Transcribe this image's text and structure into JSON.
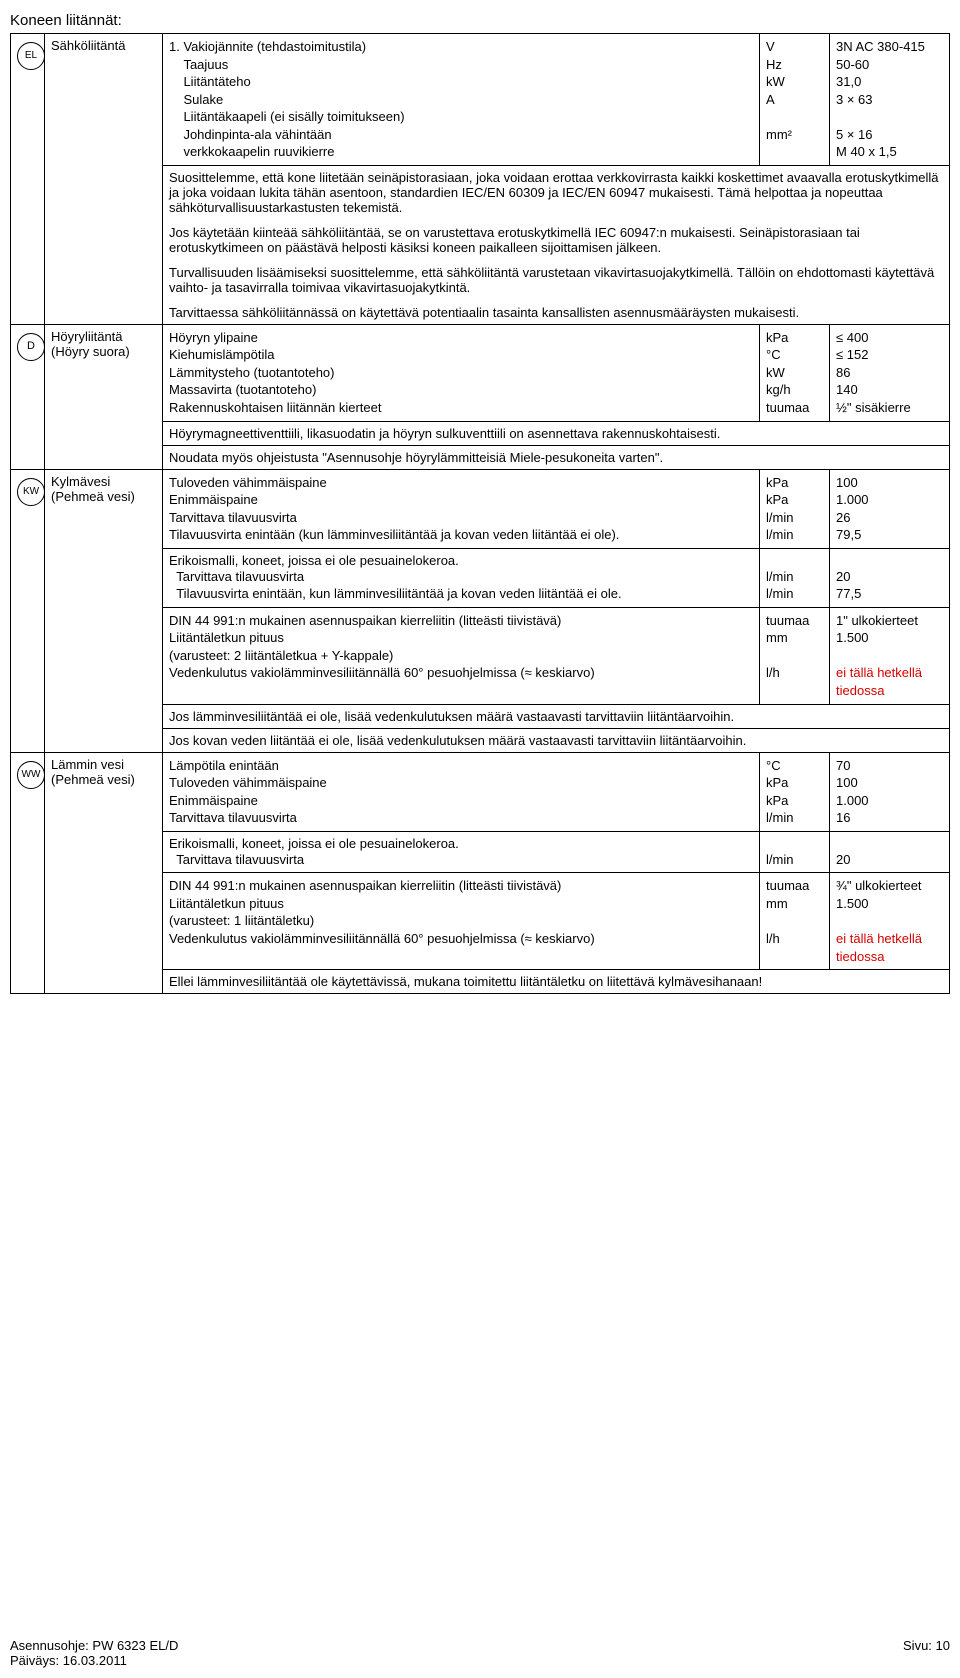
{
  "page_title": "Koneen liitännät:",
  "footer": {
    "left_line1": "Asennusohje: PW 6323 EL/D",
    "left_line2": "Päiväys: 16.03.2011",
    "right": "Sivu: 10"
  },
  "sections": [
    {
      "icon": "EL",
      "label_lines": [
        "Sähköliitäntä"
      ],
      "rows": [
        {
          "text": "1. Vakiojännite (tehdastoimitustila)",
          "unit": "V",
          "value": "3N AC 380-415"
        },
        {
          "text": "    Taajuus",
          "unit": "Hz",
          "value": "50-60"
        },
        {
          "text": "    Liitäntäteho",
          "unit": "kW",
          "value": "31,0"
        },
        {
          "text": "    Sulake",
          "unit": "A",
          "value": "3 × 63"
        },
        {
          "text": "    Liitäntäkaapeli (ei sisälly toimitukseen)",
          "unit": "",
          "value": ""
        },
        {
          "text": "    Johdinpinta-ala vähintään",
          "unit": "mm²",
          "value": "5 × 16"
        },
        {
          "text": "    verkkokaapelin ruuvikierre",
          "unit": "",
          "value": "M 40 x 1,5"
        }
      ],
      "paragraphs": [
        "Suosittelemme, että kone liitetään seinäpistorasiaan, joka voidaan erottaa verkkovirrasta kaikki koskettimet avaavalla erotuskytkimellä ja joka voidaan lukita tähän asentoon, standardien IEC/EN 60309 ja IEC/EN 60947 mukaisesti. Tämä helpottaa ja nopeuttaa sähköturvallisuustarkastusten tekemistä.",
        "Jos käytetään kiinteää sähköliitäntää, se on varustettava erotuskytkimellä IEC 60947:n mukaisesti. Seinäpistorasiaan tai erotuskytkimeen on päästävä helposti käsiksi koneen paikalleen sijoittamisen jälkeen.",
        "Turvallisuuden lisäämiseksi suosittelemme, että sähköliitäntä varustetaan vikavirtasuojakytkimellä. Tällöin on ehdottomasti käytettävä vaihto- ja tasavirralla toimivaa vikavirtasuojakytkintä.",
        "Tarvittaessa sähköliitännässä on käytettävä potentiaalin tasainta kansallisten asennusmääräysten mukaisesti."
      ]
    },
    {
      "icon": "D",
      "label_lines": [
        "Höyryliitäntä",
        "(Höyry suora)"
      ],
      "rows": [
        {
          "text": "Höyryn ylipaine",
          "unit": "kPa",
          "value": "≤ 400"
        },
        {
          "text": "Kiehumislämpötila",
          "unit": "°C",
          "value": "≤ 152"
        },
        {
          "text": "Lämmitysteho (tuotantoteho)",
          "unit": "kW",
          "value": "86"
        },
        {
          "text": "Massavirta (tuotantoteho)",
          "unit": "kg/h",
          "value": "140"
        },
        {
          "text": "Rakennuskohtaisen liitännän kierteet",
          "unit": "tuumaa",
          "value": "½\" sisäkierre"
        }
      ],
      "paragraphs": [
        "Höyrymagneettiventtiili, likasuodatin ja höyryn sulkuventtiili on asennettava rakennuskohtaisesti."
      ],
      "boxed_paragraphs": [
        "Noudata myös ohjeistusta \"Asennusohje höyrylämmitteisiä Miele-pesukoneita varten\"."
      ]
    },
    {
      "icon": "KW",
      "label_lines": [
        "Kylmävesi",
        "(Pehmeä vesi)"
      ],
      "rows": [
        {
          "text": "Tuloveden vähimmäispaine",
          "unit": "kPa",
          "value": "100"
        },
        {
          "text": "Enimmäispaine",
          "unit": "kPa",
          "value": "1.000"
        },
        {
          "text": "Tarvittava tilavuusvirta",
          "unit": "l/min",
          "value": "26"
        },
        {
          "text": "Tilavuusvirta enintään (kun lämminvesiliitäntää ja kovan veden liitäntää ei ole).",
          "unit": "l/min",
          "value": "79,5"
        }
      ],
      "groups": [
        {
          "heading": "Erikoismalli, koneet, joissa ei ole pesuainelokeroa.",
          "rows": [
            {
              "text": "  Tarvittava tilavuusvirta",
              "unit": "l/min",
              "value": "20"
            },
            {
              "text": "  Tilavuusvirta enintään, kun lämminvesiliitäntää ja kovan veden liitäntää ei ole.",
              "unit": "l/min",
              "value": "77,5"
            }
          ]
        },
        {
          "rows": [
            {
              "text": "DIN 44 991:n mukainen asennuspaikan kierreliitin (litteästi tiivistävä)",
              "unit": "tuumaa",
              "value": "1\" ulkokierteet"
            },
            {
              "text": "Liitäntäletkun pituus",
              "unit": "mm",
              "value": "1.500"
            },
            {
              "text": "(varusteet: 2 liitäntäletkua + Y-kappale)",
              "unit": "",
              "value": ""
            },
            {
              "text": "Vedenkulutus vakiolämminvesiliitännällä 60° pesuohjelmissa (≈ keskiarvo)",
              "unit": "l/h",
              "value": "ei tällä hetkellä tiedossa",
              "value_red": true
            }
          ]
        }
      ],
      "boxed_paragraphs": [
        "Jos lämminvesiliitäntää ei ole, lisää vedenkulutuksen määrä vastaavasti tarvittaviin liitäntäarvoihin.",
        "Jos kovan veden liitäntää ei ole, lisää vedenkulutuksen määrä vastaavasti tarvittaviin liitäntäarvoihin."
      ]
    },
    {
      "icon": "WW",
      "label_lines": [
        "Lämmin vesi",
        "(Pehmeä vesi)"
      ],
      "rows": [
        {
          "text": "Lämpötila enintään",
          "unit": "°C",
          "value": "70"
        },
        {
          "text": "Tuloveden vähimmäispaine",
          "unit": "kPa",
          "value": "100"
        },
        {
          "text": "Enimmäispaine",
          "unit": "kPa",
          "value": "1.000"
        },
        {
          "text": "Tarvittava tilavuusvirta",
          "unit": "l/min",
          "value": "16"
        }
      ],
      "groups": [
        {
          "heading": "Erikoismalli, koneet, joissa ei ole pesuainelokeroa.",
          "rows": [
            {
              "text": "  Tarvittava tilavuusvirta",
              "unit": "l/min",
              "value": "20"
            }
          ]
        },
        {
          "rows": [
            {
              "text": "DIN 44 991:n mukainen asennuspaikan kierreliitin (litteästi tiivistävä)",
              "unit": "tuumaa",
              "value": "¾\" ulkokierteet"
            },
            {
              "text": "Liitäntäletkun pituus",
              "unit": "mm",
              "value": "1.500"
            },
            {
              "text": "(varusteet: 1 liitäntäletku)",
              "unit": "",
              "value": ""
            },
            {
              "text": "Vedenkulutus vakiolämminvesiliitännällä 60° pesuohjelmissa (≈ keskiarvo)",
              "unit": "l/h",
              "value": "ei tällä hetkellä tiedossa",
              "value_red": true
            }
          ]
        }
      ],
      "boxed_paragraphs": [
        "Ellei lämminvesiliitäntää ole käytettävissä, mukana toimitettu liitäntäletku on liitettävä kylmävesihanaan!"
      ]
    }
  ]
}
